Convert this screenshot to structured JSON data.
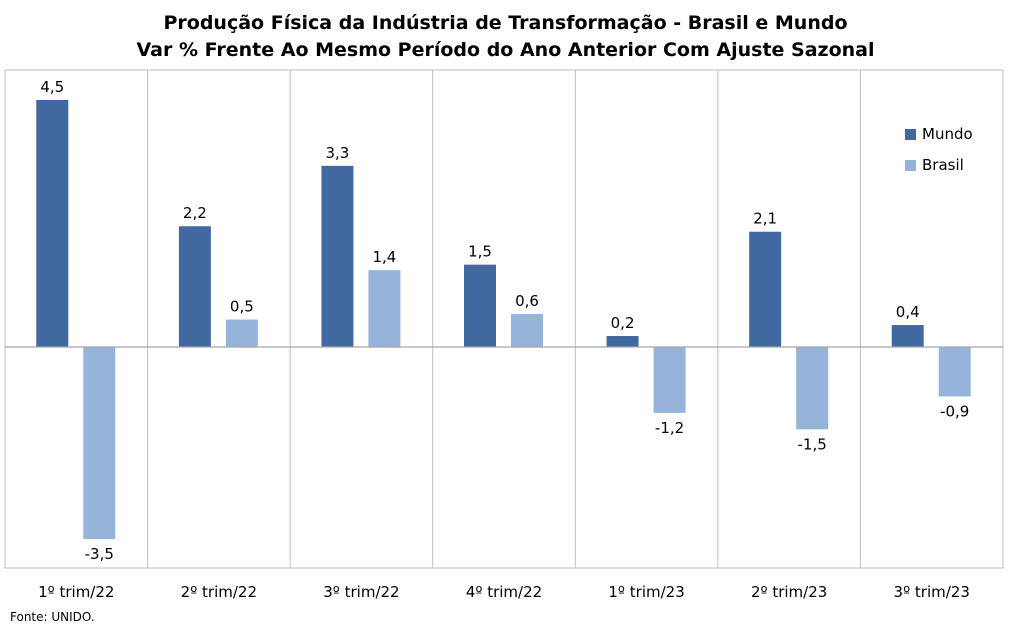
{
  "chart_data": {
    "type": "bar",
    "title": "Produção Física da Indústria de Transformação - Brasil e Mundo",
    "subtitle": "Var % Frente Ao Mesmo Período do Ano Anterior Com Ajuste Sazonal",
    "categories": [
      "1º trim/22",
      "2º trim/22",
      "3º trim/22",
      "4º trim/22",
      "1º trim/23",
      "2º trim/23",
      "3º trim/23"
    ],
    "series": [
      {
        "name": "Mundo",
        "color": "#41699f",
        "values": [
          4.5,
          2.2,
          3.3,
          1.5,
          0.2,
          2.1,
          0.4
        ],
        "labels": [
          "4,5",
          "2,2",
          "3,3",
          "1,5",
          "0,2",
          "2,1",
          "0,4"
        ]
      },
      {
        "name": "Brasil",
        "color": "#96b4d9",
        "values": [
          -3.5,
          0.5,
          1.4,
          0.6,
          -1.2,
          -1.5,
          -0.9
        ],
        "labels": [
          "-3,5",
          "0,5",
          "1,4",
          "0,6",
          "-1,2",
          "-1,5",
          "-0,9"
        ]
      }
    ],
    "ylim": [
      -4,
      5
    ],
    "grid": "vertical separators",
    "legend_position": "top-right"
  },
  "source": "Fonte: UNIDO."
}
